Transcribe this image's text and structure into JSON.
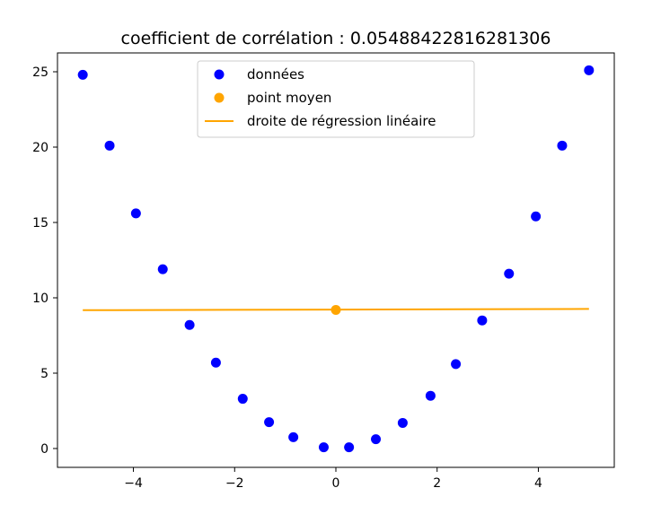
{
  "chart_data": {
    "type": "scatter",
    "title": "coefficient de corrélation : 0.05488422816281306",
    "xlabel": "",
    "ylabel": "",
    "xlim": [
      -5.5,
      5.5
    ],
    "ylim": [
      -1.25,
      26.25
    ],
    "xticks": [
      -4,
      -2,
      0,
      2,
      4
    ],
    "xtick_labels": [
      "−4",
      "−2",
      "0",
      "2",
      "4"
    ],
    "yticks": [
      0,
      5,
      10,
      15,
      20,
      25
    ],
    "ytick_labels": [
      "0",
      "5",
      "10",
      "15",
      "20",
      "25"
    ],
    "grid": false,
    "legend_position": "top-center",
    "series": [
      {
        "name": "données",
        "kind": "scatter",
        "color": "#0000ff",
        "x": [
          -5.0,
          -4.47,
          -3.95,
          -3.42,
          -2.89,
          -2.37,
          -1.84,
          -1.32,
          -0.84,
          -0.24,
          0.26,
          0.79,
          1.32,
          1.87,
          2.37,
          2.89,
          3.42,
          3.95,
          4.47,
          5.0
        ],
        "y": [
          24.8,
          20.1,
          15.6,
          11.9,
          8.2,
          5.7,
          3.3,
          1.75,
          0.75,
          0.08,
          0.08,
          0.62,
          1.7,
          3.5,
          5.6,
          8.5,
          11.6,
          15.4,
          20.1,
          25.1
        ]
      },
      {
        "name": "point moyen",
        "kind": "scatter",
        "color": "#ffa500",
        "x": [
          0.0
        ],
        "y": [
          9.2
        ]
      },
      {
        "name": "droite de régression linéaire",
        "kind": "line",
        "color": "#ffa500",
        "x": [
          -5.0,
          5.0
        ],
        "y": [
          9.18,
          9.26
        ]
      }
    ]
  }
}
